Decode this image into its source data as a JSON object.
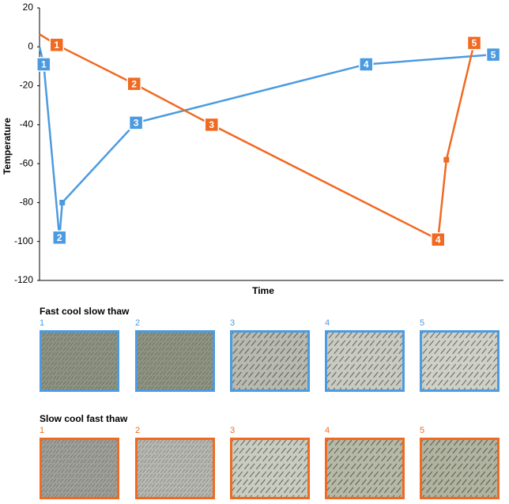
{
  "chart_data": {
    "type": "line",
    "xlabel": "Time",
    "ylabel": "Temperature",
    "xlim": [
      0,
      100
    ],
    "ylim": [
      -120,
      20
    ],
    "yticks": [
      -120,
      -100,
      -80,
      -60,
      -40,
      -20,
      0,
      20
    ],
    "grid": false,
    "series": [
      {
        "name": "Fast cool slow thaw",
        "color": "#4c9be0",
        "x": [
          0,
          0.9,
          4.3,
          4.9,
          20.8,
          70.4,
          97.8
        ],
        "values": [
          0,
          -9,
          -98,
          -80,
          -39,
          -9,
          -4
        ],
        "point_labels": [
          null,
          "1",
          "2",
          null,
          "3",
          "4",
          "5"
        ]
      },
      {
        "name": "Slow cool fast thaw",
        "color": "#f06a21",
        "x": [
          0,
          3.7,
          20.4,
          37.1,
          85.9,
          87.7,
          93.7
        ],
        "values": [
          6.5,
          1,
          -19,
          -40,
          -99,
          -58,
          2
        ],
        "point_labels": [
          null,
          "1",
          "2",
          "3",
          "4",
          null,
          "5"
        ]
      }
    ]
  },
  "panels": [
    {
      "title": "Fast cool slow thaw",
      "color": "#4c9be0",
      "labels": [
        "1",
        "2",
        "3",
        "4",
        "5"
      ]
    },
    {
      "title": "Slow cool fast thaw",
      "color": "#f06a21",
      "labels": [
        "1",
        "2",
        "3",
        "4",
        "5"
      ]
    }
  ]
}
